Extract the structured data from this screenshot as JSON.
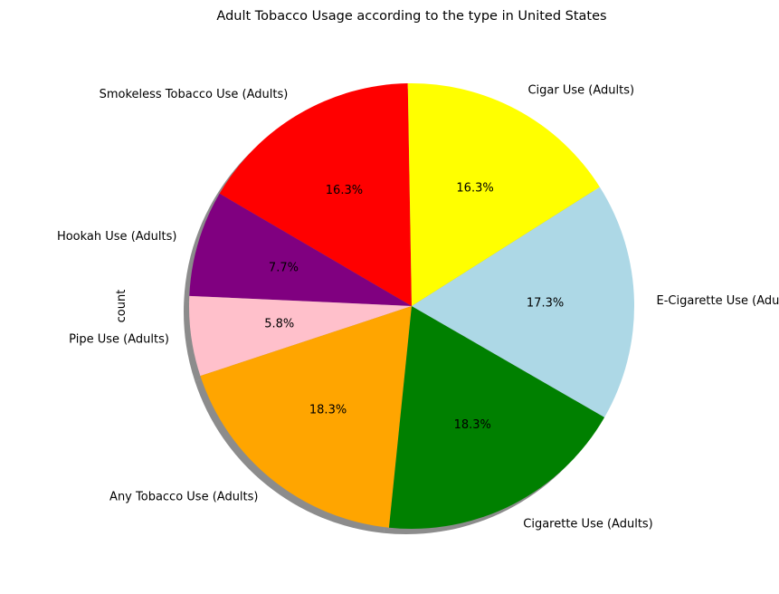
{
  "chart_data": {
    "type": "pie",
    "title": "Adult Tobacco Usage according to the type in United States",
    "ylabel": "count",
    "start_angle_deg": 91,
    "counterclockwise": true,
    "shadow": true,
    "slices": [
      {
        "label": "Smokeless Tobacco Use (Adults)",
        "value": 16.3,
        "pct_label": "16.3%",
        "color": "#ff0000"
      },
      {
        "label": "Hookah Use (Adults)",
        "value": 7.7,
        "pct_label": "7.7%",
        "color": "#800080"
      },
      {
        "label": "Pipe Use (Adults)",
        "value": 5.8,
        "pct_label": "5.8%",
        "color": "#ffc0cb"
      },
      {
        "label": "Any Tobacco Use (Adults)",
        "value": 18.3,
        "pct_label": "18.3%",
        "color": "#ffa500"
      },
      {
        "label": "Cigarette Use (Adults)",
        "value": 18.3,
        "pct_label": "18.3%",
        "color": "#008000"
      },
      {
        "label": "E-Cigarette Use (Adults)",
        "value": 17.3,
        "pct_label": "17.3%",
        "color": "#add8e6"
      },
      {
        "label": "Cigar Use (Adults)",
        "value": 16.3,
        "pct_label": "16.3%",
        "color": "#ffff00"
      }
    ]
  }
}
